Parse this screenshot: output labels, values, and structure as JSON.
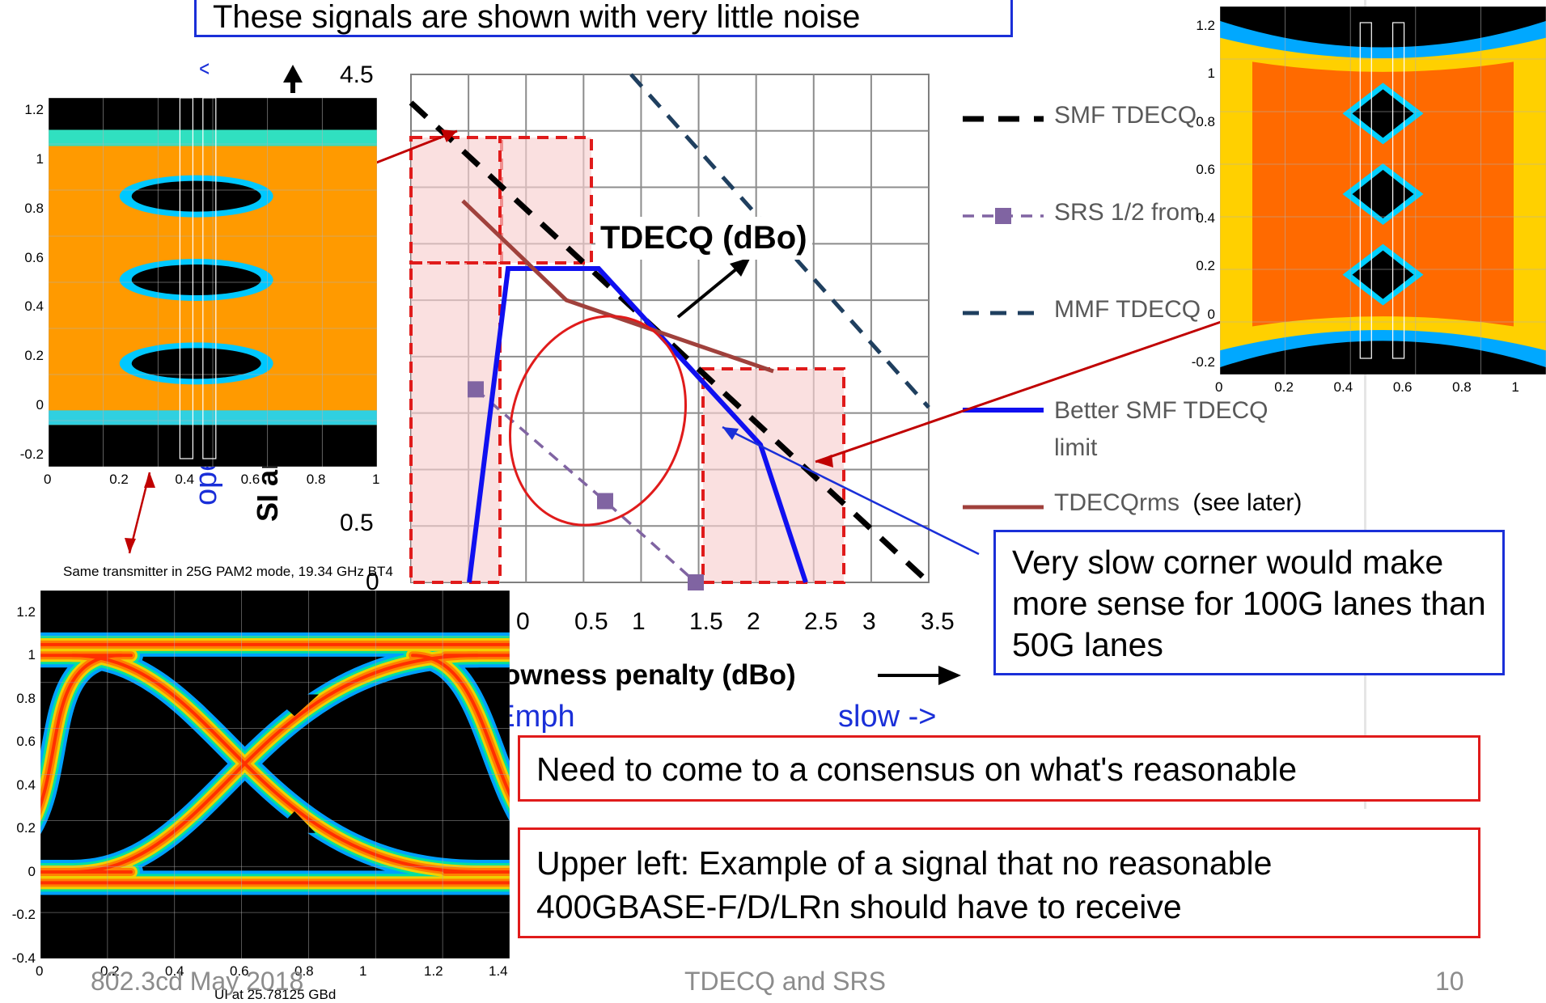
{
  "top_note": "These signals are shown with very little noise",
  "slow_corner_note": "Very slow corner would make more sense for 100G lanes than 50G lanes",
  "consensus_note": "Need to come to a consensus on what's reasonable",
  "upper_left_note": "Upper left: Example of a signal that no reasonable 400GBASE-F/D/LRn should have to receive",
  "tdecq_callout": "TDECQ (dBo)",
  "footer": {
    "left": "802.3cd May 2018",
    "center": "TDECQ and SRS",
    "page": "10"
  },
  "colors": {
    "smf": "#000000",
    "srs": "#8064a2",
    "mmf": "#1f3f5f",
    "better": "#1010f0",
    "tdecqrms": "#a0413c",
    "box_fill": "#f8d0d0",
    "box_edge": "#e01b1b"
  },
  "chart_data": {
    "type": "line",
    "xlabel": "owness penalty (dBo)",
    "ylabel_fragment": "SI and",
    "x_hint_left": "<- overEmph",
    "x_hint_right": "slow ->",
    "y_hint": "open",
    "y_hint_top": "^",
    "xlim": [
      -0.5,
      3.5
    ],
    "ylim": [
      0,
      4.5
    ],
    "x_ticks": [
      "0",
      "0.5",
      "1",
      "1.5",
      "2",
      "2.5",
      "3",
      "3.5"
    ],
    "y_ticks": [
      "0",
      "0.5",
      "4.5"
    ],
    "grid": true,
    "series": [
      {
        "name": "SMF TDECQ",
        "x": [
          -0.5,
          3.5
        ],
        "y": [
          4.25,
          0.0
        ]
      },
      {
        "name": "SRS 1/2 from",
        "x": [
          0.0,
          1.0,
          1.7
        ],
        "y": [
          1.71,
          0.72,
          0.0
        ]
      },
      {
        "name": "MMF TDECQ",
        "x": [
          1.2,
          3.5
        ],
        "y": [
          4.5,
          1.55
        ]
      },
      {
        "name": "Better SMF TDECQ limit",
        "x": [
          -0.05,
          0.25,
          0.95,
          2.2,
          2.55
        ],
        "y": [
          0.0,
          2.78,
          2.78,
          1.22,
          0.0
        ]
      },
      {
        "name": "TDECQrms",
        "x": [
          -0.1,
          0.7,
          2.3
        ],
        "y": [
          3.38,
          2.5,
          1.87
        ]
      }
    ],
    "legend": [
      {
        "name": "SMF TDECQ"
      },
      {
        "name": "SRS 1/2 from"
      },
      {
        "name": "MMF TDECQ"
      },
      {
        "name": "Better SMF TDECQ limit"
      },
      {
        "name": "TDECQrms",
        "extra": "(see later)"
      }
    ]
  },
  "eye_left": {
    "y_ticks": [
      "1.2",
      "1",
      "0.8",
      "0.6",
      "0.4",
      "0.2",
      "0",
      "-0.2"
    ],
    "x_ticks": [
      "0",
      "0.2",
      "0.4",
      "0.6",
      "0.8",
      "1"
    ],
    "caption": "Same transmitter in 25G PAM2 mode, 19.34 GHz BT4"
  },
  "eye_right": {
    "y_ticks": [
      "1.2",
      "1",
      "0.8",
      "0.6",
      "0.4",
      "0.2",
      "0",
      "-0.2"
    ],
    "x_ticks": [
      "0",
      "0.2",
      "0.4",
      "0.6",
      "0.8",
      "1"
    ]
  },
  "eye_bottom": {
    "y_ticks": [
      "1.2",
      "1",
      "0.8",
      "0.6",
      "0.4",
      "0.2",
      "0",
      "-0.2",
      "-0.4"
    ],
    "x_ticks": [
      "0",
      "0.2",
      "0.4",
      "0.6",
      "0.8",
      "1",
      "1.2",
      "1.4"
    ],
    "xlabel": "UI at 25.78125 GBd"
  }
}
